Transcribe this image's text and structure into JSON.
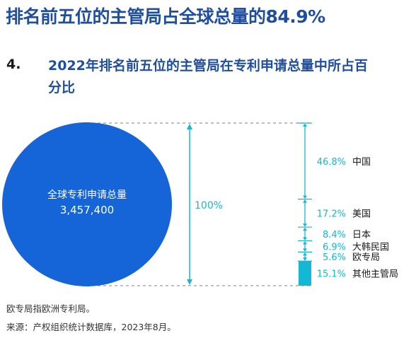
{
  "headline": "排名前五位的主管局占全球总量的84.9%",
  "figure": {
    "number": "4.",
    "title": "2022年排名前五位的主管局在专利申请总量中所占百分比"
  },
  "chart_data": {
    "type": "stacked-bar",
    "circle_label": "全球专利申请总量",
    "circle_value": "3,457,400",
    "total_label": "100%",
    "segments": [
      {
        "name": "中国",
        "label": "46.8%",
        "value": 46.8
      },
      {
        "name": "美国",
        "label": "17.2%",
        "value": 17.2
      },
      {
        "name": "日本",
        "label": "8.4%",
        "value": 8.4
      },
      {
        "name": "大韩民国",
        "label": "6.9%",
        "value": 6.9
      },
      {
        "name": "欧专局",
        "label": "5.6%",
        "value": 5.6
      },
      {
        "name": "其他主管局",
        "label": "15.1%",
        "value": 15.1
      }
    ],
    "colors": {
      "circle": "#1565d8",
      "accent": "#14b8d4",
      "dashed": "#9a9a9a"
    }
  },
  "notes": {
    "note": "欧专局指欧洲专利局。",
    "source": "来源：产权组织统计数据库，2023年8月。"
  }
}
